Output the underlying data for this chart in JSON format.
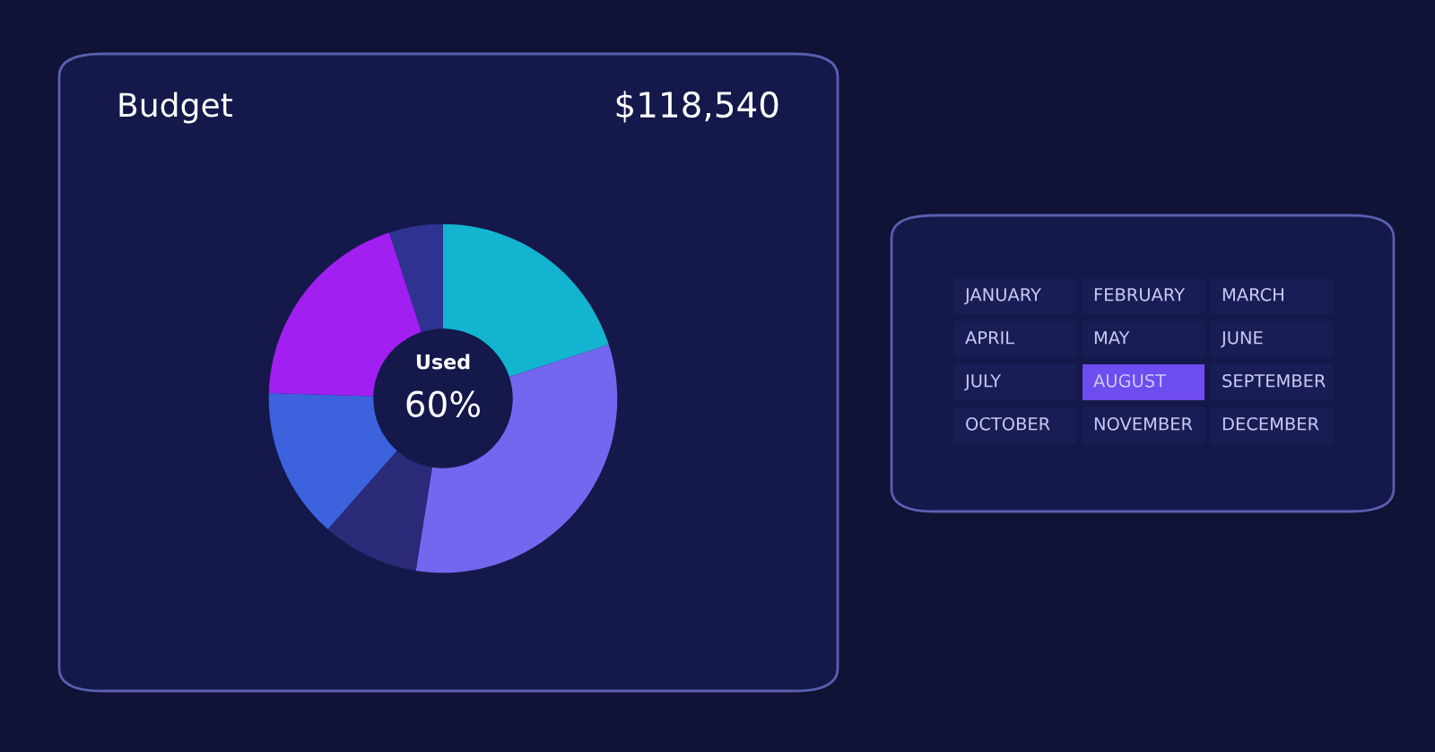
{
  "chart_data": [
    {
      "type": "donut",
      "title": "Budget",
      "subtitle": "$118,540",
      "annotations": [
        "Used",
        "60%"
      ],
      "categories": [
        null,
        null,
        null,
        null,
        null,
        null
      ],
      "values": [
        20,
        32.5,
        9,
        14,
        19.5,
        5
      ],
      "colors": [
        "#12b4d0",
        "#7566ef",
        "#2a2a78",
        "#3c62de",
        "#a11ff0",
        "#2e3391"
      ]
    },
    {
      "type": "other",
      "categories": [
        "JANUARY",
        "FEBRUARY",
        "MARCH",
        "APRIL",
        "MAY",
        "JUNE",
        "JULY",
        "AUGUST",
        "SEPTEMBER",
        "OCTOBER",
        "NOVEMBER",
        "DECEMBER"
      ],
      "colors": [
        "#1a1c55",
        "#1a1c55",
        "#1a1c55",
        "#1a1c55",
        "#1a1c55",
        "#1a1c55",
        "#1a1c55",
        "#6d4cf0",
        "#1a1c55",
        "#1a1c55",
        "#1a1c55",
        "#1a1c55"
      ]
    }
  ]
}
